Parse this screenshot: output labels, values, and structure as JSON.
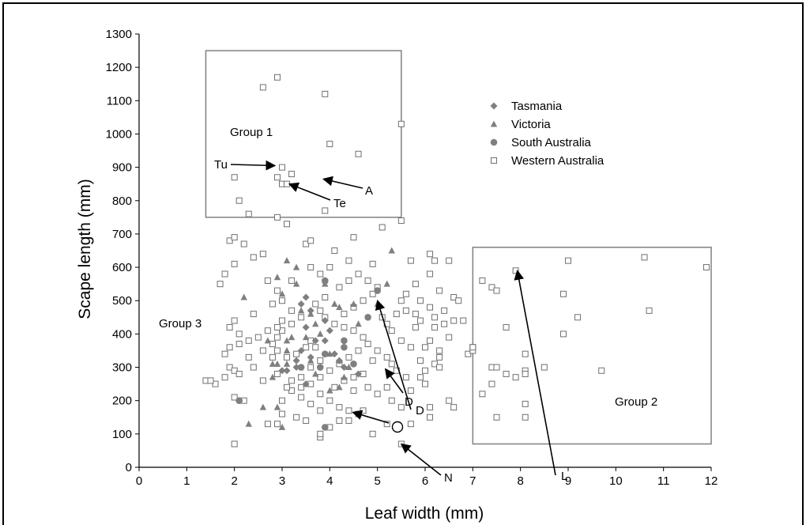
{
  "chart_data": {
    "type": "scatter",
    "title": "",
    "xlabel": "Leaf width (mm)",
    "ylabel": "Scape length (mm)",
    "xlim": [
      0,
      12
    ],
    "ylim": [
      0,
      1300
    ],
    "x_ticks": [
      "0",
      "1",
      "2",
      "3",
      "4",
      "5",
      "6",
      "7",
      "8",
      "9",
      "10",
      "11",
      "12"
    ],
    "y_ticks": [
      "0",
      "100",
      "200",
      "300",
      "400",
      "500",
      "600",
      "700",
      "800",
      "900",
      "1000",
      "1100",
      "1200",
      "1300"
    ],
    "legend_position": "top-right",
    "colors": {
      "filled": "#7f7f7f",
      "open": "#707070"
    },
    "series": [
      {
        "name": "Tasmania",
        "marker": "diamond",
        "points": [
          [
            3.5,
            510
          ],
          [
            3.4,
            490
          ],
          [
            3.6,
            470
          ],
          [
            3.5,
            420
          ],
          [
            3.4,
            350
          ],
          [
            3.6,
            330
          ],
          [
            3.3,
            320
          ],
          [
            3.1,
            290
          ],
          [
            3.0,
            290
          ],
          [
            3.7,
            380
          ],
          [
            3.9,
            440
          ],
          [
            4.0,
            410
          ],
          [
            3.9,
            380
          ],
          [
            4.1,
            340
          ],
          [
            4.2,
            320
          ],
          [
            4.6,
            280
          ],
          [
            4.3,
            300
          ],
          [
            3.5,
            250
          ],
          [
            3.3,
            300
          ]
        ]
      },
      {
        "name": "Victoria",
        "marker": "triangle",
        "points": [
          [
            3.1,
            620
          ],
          [
            2.9,
            570
          ],
          [
            3.3,
            550
          ],
          [
            3.0,
            520
          ],
          [
            2.2,
            510
          ],
          [
            2.7,
            380
          ],
          [
            2.8,
            310
          ],
          [
            2.9,
            310
          ],
          [
            3.1,
            310
          ],
          [
            3.1,
            350
          ],
          [
            3.1,
            380
          ],
          [
            3.2,
            390
          ],
          [
            3.5,
            390
          ],
          [
            3.4,
            470
          ],
          [
            3.6,
            460
          ],
          [
            3.7,
            430
          ],
          [
            3.8,
            400
          ],
          [
            4.1,
            490
          ],
          [
            4.5,
            490
          ],
          [
            4.2,
            480
          ],
          [
            5.3,
            650
          ],
          [
            5.2,
            550
          ],
          [
            5.0,
            490
          ],
          [
            4.6,
            430
          ],
          [
            4.0,
            340
          ],
          [
            4.2,
            320
          ],
          [
            4.3,
            270
          ],
          [
            4.0,
            230
          ],
          [
            4.2,
            240
          ],
          [
            3.5,
            250
          ],
          [
            3.6,
            320
          ],
          [
            2.3,
            130
          ],
          [
            2.6,
            180
          ],
          [
            2.9,
            180
          ],
          [
            3.0,
            120
          ],
          [
            2.8,
            270
          ],
          [
            3.7,
            280
          ],
          [
            4.4,
            300
          ],
          [
            3.9,
            560
          ],
          [
            3.3,
            600
          ],
          [
            3.9,
            550
          ]
        ]
      },
      {
        "name": "South Australia",
        "marker": "circle",
        "points": [
          [
            3.9,
            560
          ],
          [
            5.0,
            530
          ],
          [
            4.8,
            450
          ],
          [
            4.3,
            380
          ],
          [
            4.3,
            360
          ],
          [
            3.9,
            340
          ],
          [
            4.5,
            310
          ],
          [
            3.4,
            300
          ],
          [
            2.1,
            200
          ],
          [
            3.9,
            120
          ],
          [
            3.8,
            300
          ]
        ]
      },
      {
        "name": "Western Australia",
        "marker": "open-square",
        "points": [
          [
            2.6,
            1140
          ],
          [
            2.9,
            1170
          ],
          [
            3.9,
            1120
          ],
          [
            5.5,
            1030
          ],
          [
            4.0,
            970
          ],
          [
            4.6,
            940
          ],
          [
            2.0,
            870
          ],
          [
            2.1,
            800
          ],
          [
            2.3,
            760
          ],
          [
            1.9,
            680
          ],
          [
            2.0,
            690
          ],
          [
            2.2,
            670
          ],
          [
            1.7,
            550
          ],
          [
            1.8,
            580
          ],
          [
            2.0,
            610
          ],
          [
            2.4,
            630
          ],
          [
            2.6,
            640
          ],
          [
            3.1,
            730
          ],
          [
            2.9,
            750
          ],
          [
            3.9,
            770
          ],
          [
            4.5,
            690
          ],
          [
            4.1,
            650
          ],
          [
            4.4,
            620
          ],
          [
            5.1,
            720
          ],
          [
            5.5,
            740
          ],
          [
            3.5,
            670
          ],
          [
            3.6,
            680
          ],
          [
            4.0,
            600
          ],
          [
            4.9,
            610
          ],
          [
            5.7,
            620
          ],
          [
            6.1,
            640
          ],
          [
            6.2,
            620
          ],
          [
            6.5,
            620
          ],
          [
            6.1,
            580
          ],
          [
            5.8,
            550
          ],
          [
            5.6,
            520
          ],
          [
            5.9,
            500
          ],
          [
            6.3,
            530
          ],
          [
            6.6,
            510
          ],
          [
            6.7,
            500
          ],
          [
            6.4,
            470
          ],
          [
            6.2,
            450
          ],
          [
            6.4,
            430
          ],
          [
            6.6,
            440
          ],
          [
            6.8,
            440
          ],
          [
            6.5,
            390
          ],
          [
            6.1,
            380
          ],
          [
            6.0,
            360
          ],
          [
            5.7,
            360
          ],
          [
            5.5,
            380
          ],
          [
            5.3,
            410
          ],
          [
            5.2,
            430
          ],
          [
            5.1,
            450
          ],
          [
            5.4,
            460
          ],
          [
            5.6,
            470
          ],
          [
            5.8,
            420
          ],
          [
            5.9,
            440
          ],
          [
            6.2,
            420
          ],
          [
            6.3,
            350
          ],
          [
            6.3,
            330
          ],
          [
            6.2,
            310
          ],
          [
            6.0,
            290
          ],
          [
            5.9,
            270
          ],
          [
            5.6,
            270
          ],
          [
            5.4,
            290
          ],
          [
            5.3,
            310
          ],
          [
            5.2,
            330
          ],
          [
            5.0,
            350
          ],
          [
            4.9,
            320
          ],
          [
            4.7,
            280
          ],
          [
            4.5,
            270
          ],
          [
            4.8,
            240
          ],
          [
            5.0,
            220
          ],
          [
            5.3,
            200
          ],
          [
            5.5,
            180
          ],
          [
            5.7,
            130
          ],
          [
            6.1,
            150
          ],
          [
            6.1,
            180
          ],
          [
            6.5,
            200
          ],
          [
            6.6,
            180
          ],
          [
            6.9,
            340
          ],
          [
            7.0,
            360
          ],
          [
            7.0,
            350
          ],
          [
            6.0,
            250
          ],
          [
            5.7,
            230
          ],
          [
            5.2,
            240
          ],
          [
            5.2,
            130
          ],
          [
            4.9,
            100
          ],
          [
            4.7,
            170
          ],
          [
            4.4,
            170
          ],
          [
            4.2,
            180
          ],
          [
            4.0,
            200
          ],
          [
            3.8,
            170
          ],
          [
            3.5,
            140
          ],
          [
            3.3,
            150
          ],
          [
            3.0,
            160
          ],
          [
            2.9,
            130
          ],
          [
            2.7,
            130
          ],
          [
            3.0,
            200
          ],
          [
            3.2,
            230
          ],
          [
            3.4,
            240
          ],
          [
            3.6,
            250
          ],
          [
            3.8,
            270
          ],
          [
            4.0,
            290
          ],
          [
            4.2,
            310
          ],
          [
            4.4,
            330
          ],
          [
            4.6,
            350
          ],
          [
            4.8,
            370
          ],
          [
            4.7,
            390
          ],
          [
            4.5,
            410
          ],
          [
            4.3,
            420
          ],
          [
            4.1,
            430
          ],
          [
            3.9,
            450
          ],
          [
            3.8,
            470
          ],
          [
            3.7,
            490
          ],
          [
            3.9,
            510
          ],
          [
            4.2,
            540
          ],
          [
            4.4,
            560
          ],
          [
            4.6,
            580
          ],
          [
            4.8,
            560
          ],
          [
            5.0,
            540
          ],
          [
            4.9,
            520
          ],
          [
            4.7,
            500
          ],
          [
            4.5,
            480
          ],
          [
            4.3,
            460
          ],
          [
            3.4,
            450
          ],
          [
            3.2,
            430
          ],
          [
            3.0,
            410
          ],
          [
            2.9,
            390
          ],
          [
            2.7,
            410
          ],
          [
            2.5,
            390
          ],
          [
            2.3,
            380
          ],
          [
            2.1,
            370
          ],
          [
            1.9,
            360
          ],
          [
            1.8,
            340
          ],
          [
            1.9,
            300
          ],
          [
            2.0,
            290
          ],
          [
            2.1,
            280
          ],
          [
            1.8,
            270
          ],
          [
            1.6,
            250
          ],
          [
            1.4,
            260
          ],
          [
            1.5,
            260
          ],
          [
            2.0,
            210
          ],
          [
            2.2,
            200
          ],
          [
            2.0,
            70
          ],
          [
            3.8,
            90
          ],
          [
            3.8,
            100
          ],
          [
            5.5,
            70
          ],
          [
            2.4,
            460
          ],
          [
            2.8,
            490
          ],
          [
            3.0,
            500
          ],
          [
            3.2,
            470
          ],
          [
            3.0,
            440
          ],
          [
            2.9,
            420
          ],
          [
            2.9,
            350
          ],
          [
            2.8,
            330
          ],
          [
            2.9,
            280
          ],
          [
            2.6,
            260
          ],
          [
            2.4,
            300
          ],
          [
            2.3,
            330
          ],
          [
            2.1,
            400
          ],
          [
            1.9,
            420
          ],
          [
            2.0,
            440
          ],
          [
            2.7,
            560
          ],
          [
            2.9,
            530
          ],
          [
            3.6,
            600
          ],
          [
            3.8,
            580
          ],
          [
            3.2,
            560
          ],
          [
            2.9,
            870
          ],
          [
            3.0,
            850
          ],
          [
            3.1,
            850
          ],
          [
            3.2,
            880
          ],
          [
            3.0,
            900
          ],
          [
            3.6,
            380
          ],
          [
            3.7,
            360
          ],
          [
            3.8,
            320
          ],
          [
            3.6,
            300
          ],
          [
            3.4,
            270
          ],
          [
            3.2,
            260
          ],
          [
            3.1,
            240
          ],
          [
            3.4,
            210
          ],
          [
            3.6,
            190
          ],
          [
            3.8,
            220
          ],
          [
            4.1,
            240
          ],
          [
            4.3,
            260
          ],
          [
            4.5,
            230
          ],
          [
            4.2,
            140
          ],
          [
            4.0,
            120
          ],
          [
            4.4,
            140
          ],
          [
            4.6,
            160
          ],
          [
            5.9,
            320
          ],
          [
            6.3,
            300
          ],
          [
            6.1,
            480
          ],
          [
            5.8,
            460
          ],
          [
            5.5,
            500
          ],
          [
            3.1,
            330
          ],
          [
            3.3,
            340
          ],
          [
            3.5,
            360
          ],
          [
            2.8,
            370
          ],
          [
            2.6,
            350
          ],
          [
            7.2,
            560
          ],
          [
            7.4,
            540
          ],
          [
            7.5,
            530
          ],
          [
            7.9,
            590
          ],
          [
            9.0,
            620
          ],
          [
            10.6,
            630
          ],
          [
            11.9,
            600
          ],
          [
            8.9,
            520
          ],
          [
            10.7,
            470
          ],
          [
            9.2,
            450
          ],
          [
            7.7,
            420
          ],
          [
            8.9,
            400
          ],
          [
            8.1,
            340
          ],
          [
            7.0,
            360
          ],
          [
            7.4,
            300
          ],
          [
            7.5,
            300
          ],
          [
            8.5,
            300
          ],
          [
            9.7,
            290
          ],
          [
            7.7,
            280
          ],
          [
            7.9,
            270
          ],
          [
            8.1,
            290
          ],
          [
            8.1,
            280
          ],
          [
            7.4,
            250
          ],
          [
            7.2,
            220
          ],
          [
            8.1,
            190
          ],
          [
            7.5,
            150
          ],
          [
            8.1,
            150
          ]
        ]
      }
    ],
    "groups": [
      {
        "label": "Group 1",
        "x": [
          1.4,
          5.5
        ],
        "y": [
          750,
          1250
        ]
      },
      {
        "label": "Group 2",
        "x": [
          7.0,
          12.0
        ],
        "y": [
          70,
          660
        ]
      },
      {
        "label": "Group 3"
      }
    ],
    "annotations": [
      {
        "label": "Tu",
        "x": 2.9,
        "y": 905
      },
      {
        "label": "A",
        "x": 3.85,
        "y": 865
      },
      {
        "label": "Te",
        "x": 3.15,
        "y": 850
      },
      {
        "label": "D",
        "x": 5.05,
        "y": 500
      },
      {
        "label": "D",
        "x": 5.15,
        "y": 295
      },
      {
        "label": "L",
        "x": 7.95,
        "y": 590
      },
      {
        "label": "O",
        "x": 4.5,
        "y": 165
      },
      {
        "label": "N",
        "x": 5.5,
        "y": 70
      }
    ]
  }
}
